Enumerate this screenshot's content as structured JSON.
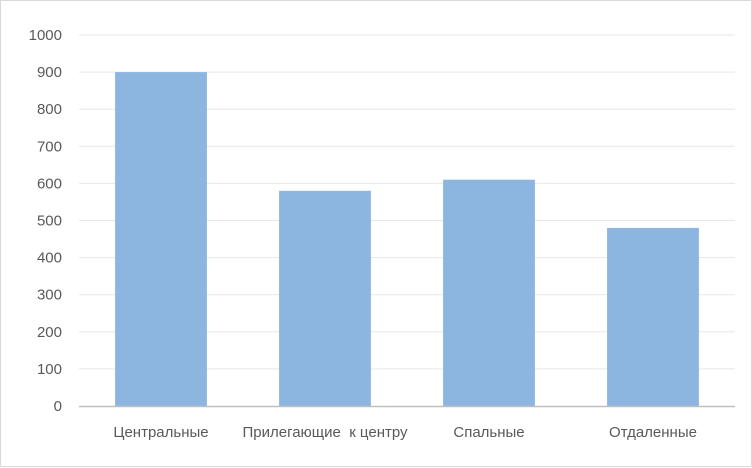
{
  "chart_data": {
    "type": "bar",
    "categories": [
      "Центральные",
      "Прилегающие  к центру",
      "Спальные",
      "Отдаленные"
    ],
    "values": [
      900,
      580,
      610,
      480
    ],
    "ylim": [
      0,
      1000
    ],
    "yticks": [
      0,
      100,
      200,
      300,
      400,
      500,
      600,
      700,
      800,
      900,
      1000
    ],
    "grid": true,
    "legend": "none",
    "colors": {
      "bar": "#8cb6e0",
      "gridline": "#e7e7e7",
      "axis": "#bfbfbf",
      "text": "#595959"
    }
  }
}
